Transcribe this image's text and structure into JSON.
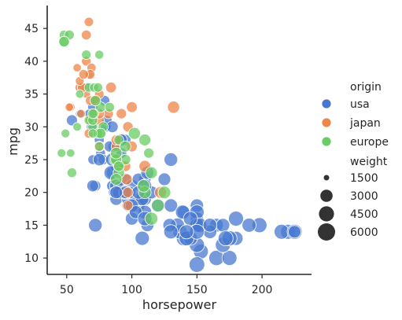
{
  "chart_data": {
    "type": "scatter",
    "xlabel": "horsepower",
    "ylabel": "mpg",
    "xlim": [
      35,
      238
    ],
    "ylim": [
      7.5,
      48.5
    ],
    "xticks": [
      50,
      100,
      150,
      200
    ],
    "yticks": [
      10,
      15,
      20,
      25,
      30,
      35,
      40,
      45
    ],
    "grid": false,
    "legend": {
      "placement": "right",
      "hue_title": "origin",
      "size_title": "weight",
      "size_levels": [
        1500,
        3000,
        4500,
        6000
      ]
    },
    "series": [
      {
        "name": "usa",
        "color": "#4878d0",
        "points": [
          [
            130,
            18,
            3504
          ],
          [
            165,
            15,
            3693
          ],
          [
            150,
            18,
            3436
          ],
          [
            150,
            16,
            3433
          ],
          [
            140,
            17,
            3449
          ],
          [
            198,
            15,
            4341
          ],
          [
            220,
            14,
            4354
          ],
          [
            215,
            14,
            4312
          ],
          [
            225,
            14,
            4425
          ],
          [
            190,
            15,
            3850
          ],
          [
            170,
            15,
            3563
          ],
          [
            160,
            14,
            3609
          ],
          [
            150,
            15,
            3761
          ],
          [
            225,
            14,
            3086
          ],
          [
            95,
            22,
            2833
          ],
          [
            97,
            18,
            2774
          ],
          [
            85,
            21,
            2587
          ],
          [
            88,
            27,
            2130
          ],
          [
            100,
            19,
            2634
          ],
          [
            105,
            18,
            3439
          ],
          [
            100,
            21,
            3329
          ],
          [
            88,
            21,
            3302
          ],
          [
            165,
            10,
            4615
          ],
          [
            175,
            10,
            4376
          ],
          [
            153,
            11,
            4382
          ],
          [
            150,
            9,
            4732
          ],
          [
            180,
            13,
            3821
          ],
          [
            170,
            12,
            4464
          ],
          [
            175,
            13,
            4502
          ],
          [
            110,
            22,
            2962
          ],
          [
            72,
            21,
            2408
          ],
          [
            100,
            18,
            3288
          ],
          [
            88,
            19,
            3139
          ],
          [
            86,
            20,
            2220
          ],
          [
            90,
            21,
            2123
          ],
          [
            70,
            25,
            2074
          ],
          [
            76,
            26,
            2065
          ],
          [
            65,
            36,
            1975
          ],
          [
            69,
            30,
            2155
          ],
          [
            60,
            32,
            1795
          ],
          [
            70,
            33,
            2189
          ],
          [
            95,
            28,
            2570
          ],
          [
            80,
            30,
            2265
          ],
          [
            54,
            31,
            2465
          ],
          [
            90,
            24,
            2265
          ],
          [
            86,
            27,
            2575
          ],
          [
            92,
            26,
            2330
          ],
          [
            97,
            19,
            3102
          ],
          [
            81,
            31,
            2110
          ],
          [
            92,
            28,
            2375
          ],
          [
            79,
            34,
            2300
          ],
          [
            83,
            27,
            2565
          ],
          [
            78,
            25,
            2225
          ],
          [
            75,
            28,
            2120
          ],
          [
            110,
            20,
            3472
          ],
          [
            140,
            13,
            4464
          ],
          [
            150,
            12,
            4429
          ],
          [
            145,
            13,
            3857
          ],
          [
            150,
            17,
            4054
          ],
          [
            137,
            14,
            4141
          ],
          [
            142,
            13,
            4274
          ],
          [
            150,
            15,
            3955
          ],
          [
            105,
            19,
            3232
          ],
          [
            100,
            16,
            3278
          ],
          [
            110,
            17,
            3665
          ],
          [
            107,
            19,
            3664
          ],
          [
            72,
            15,
            3613
          ],
          [
            139,
            17,
            3940
          ],
          [
            152,
            15,
            4215
          ],
          [
            150,
            14,
            4257
          ],
          [
            180,
            16,
            4380
          ],
          [
            145,
            16,
            3962
          ],
          [
            135,
            15,
            3921
          ],
          [
            85,
            23,
            2965
          ],
          [
            110,
            19,
            3381
          ],
          [
            129,
            15,
            3525
          ],
          [
            105,
            22,
            2945
          ],
          [
            88,
            24,
            3021
          ],
          [
            98,
            20,
            3157
          ],
          [
            108,
            19,
            3410
          ],
          [
            100,
            18,
            3410
          ],
          [
            95,
            20,
            3880
          ],
          [
            90,
            20,
            3270
          ],
          [
            70,
            21,
            2795
          ],
          [
            67,
            32,
            1850
          ],
          [
            115,
            20,
            3230
          ],
          [
            75,
            25,
            2945
          ],
          [
            120,
            18,
            3085
          ],
          [
            85,
            30,
            2745
          ],
          [
            125,
            22,
            3085
          ],
          [
            92,
            28,
            2870
          ],
          [
            85,
            25,
            3465
          ],
          [
            130,
            25,
            3615
          ],
          [
            110,
            21,
            3605
          ],
          [
            112,
            23,
            3380
          ],
          [
            105,
            20,
            3445
          ],
          [
            84,
            23,
            3820
          ],
          [
            95,
            20,
            3015
          ],
          [
            88,
            20,
            3139
          ],
          [
            142,
            14,
            3900
          ],
          [
            160,
            15,
            3740
          ],
          [
            172,
            13,
            4380
          ],
          [
            112,
            15,
            3250
          ],
          [
            130,
            14,
            3950
          ],
          [
            103,
            17,
            3290
          ],
          [
            108,
            13,
            3950
          ],
          [
            110,
            16,
            3990
          ]
        ]
      },
      {
        "name": "japan",
        "color": "#ee854a",
        "points": [
          [
            95,
            24,
            2372
          ],
          [
            88,
            27,
            2130
          ],
          [
            65,
            35,
            1773
          ],
          [
            69,
            31,
            1613
          ],
          [
            61,
            32,
            1836
          ],
          [
            67,
            46,
            1950
          ],
          [
            65,
            44,
            2110
          ],
          [
            97,
            18,
            2155
          ],
          [
            122,
            20,
            2807
          ],
          [
            75,
            31,
            2135
          ],
          [
            68,
            34,
            1985
          ],
          [
            60,
            36,
            2019
          ],
          [
            67,
            38,
            1965
          ],
          [
            53,
            33,
            1795
          ],
          [
            100,
            33,
            2420
          ],
          [
            82,
            32,
            2155
          ],
          [
            62,
            36,
            2075
          ],
          [
            88,
            25,
            2120
          ],
          [
            67,
            29,
            2019
          ],
          [
            97,
            30,
            2290
          ],
          [
            110,
            24,
            2720
          ],
          [
            65,
            40,
            2050
          ],
          [
            52,
            33,
            1760
          ],
          [
            69,
            39,
            1925
          ],
          [
            75,
            35,
            1989
          ],
          [
            75,
            27,
            2305
          ],
          [
            92,
            32,
            2200
          ],
          [
            132,
            33,
            2910
          ],
          [
            97,
            20,
            2279
          ],
          [
            68,
            38,
            2045
          ],
          [
            75,
            32,
            2200
          ],
          [
            70,
            32,
            1990
          ],
          [
            58,
            39,
            1755
          ],
          [
            84,
            36,
            2370
          ],
          [
            72,
            34,
            2050
          ],
          [
            60,
            37,
            1850
          ],
          [
            63,
            38,
            2050
          ],
          [
            100,
            27,
            2375
          ],
          [
            88,
            28,
            2230
          ],
          [
            90,
            24,
            2265
          ],
          [
            96,
            22,
            2470
          ],
          [
            72,
            34,
            2050
          ],
          [
            68,
            31,
            1970
          ],
          [
            75,
            29,
            2215
          ]
        ]
      },
      {
        "name": "europe",
        "color": "#6acc64",
        "points": [
          [
            46,
            26,
            1835
          ],
          [
            87,
            25,
            2672
          ],
          [
            90,
            24,
            2430
          ],
          [
            95,
            25,
            2375
          ],
          [
            113,
            26,
            2234
          ],
          [
            90,
            28,
            2123
          ],
          [
            70,
            30,
            2074
          ],
          [
            76,
            29,
            2065
          ],
          [
            48,
            44,
            2085
          ],
          [
            48,
            43,
            2335
          ],
          [
            67,
            36,
            1950
          ],
          [
            78,
            30,
            2190
          ],
          [
            75,
            27,
            1985
          ],
          [
            88,
            25,
            2540
          ],
          [
            71,
            36,
            1925
          ],
          [
            58,
            30,
            1825
          ],
          [
            52,
            44,
            2130
          ],
          [
            74,
            29,
            2144
          ],
          [
            88,
            26,
            2700
          ],
          [
            90,
            23,
            2600
          ],
          [
            67,
            31,
            2000
          ],
          [
            115,
            16,
            3270
          ],
          [
            110,
            20,
            3145
          ],
          [
            48,
            43,
            2335
          ],
          [
            74,
            36,
            1980
          ],
          [
            75,
            41,
            1900
          ],
          [
            76,
            33,
            2300
          ],
          [
            83,
            33,
            2045
          ],
          [
            70,
            31,
            2130
          ],
          [
            95,
            27,
            2500
          ],
          [
            49,
            29,
            1867
          ],
          [
            115,
            23,
            2820
          ],
          [
            125,
            20,
            3140
          ],
          [
            120,
            18,
            3270
          ],
          [
            110,
            28,
            2760
          ],
          [
            71,
            32,
            2050
          ],
          [
            76,
            29,
            2255
          ],
          [
            88,
            22,
            2720
          ],
          [
            109,
            21,
            3055
          ],
          [
            102,
            29,
            2855
          ],
          [
            53,
            26,
            1760
          ],
          [
            72,
            34,
            2325
          ],
          [
            70,
            32,
            2100
          ],
          [
            60,
            35,
            1800
          ],
          [
            54,
            23,
            2040
          ],
          [
            90,
            24,
            2265
          ],
          [
            70,
            29,
            1937
          ],
          [
            65,
            41,
            1985
          ]
        ]
      }
    ]
  }
}
